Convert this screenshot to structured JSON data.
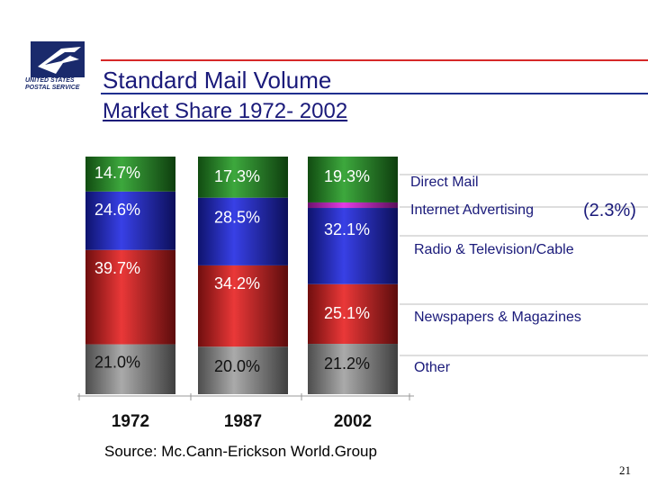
{
  "logo": {
    "line1": "UNITED STATES",
    "line2": "POSTAL SERVICE"
  },
  "title": "Standard Mail Volume",
  "subtitle": "Market Share 1972- 2002",
  "source": "Source: Mc.Cann-Erickson World.Group",
  "page_number": "21",
  "colors": {
    "direct_mail": "#1f8a1f",
    "internet_advertising": "#c61ec6",
    "radio_tv_cable": "#1a22c8",
    "newspapers_magazines": "#cc1a1a",
    "other": "#8c8c8c",
    "title": "#1a1a7a",
    "red_rule": "#d62828",
    "blue_rule": "#1f2f8f"
  },
  "chart_data": {
    "type": "bar",
    "stacked": true,
    "normalized_percent": true,
    "categories": [
      "1972",
      "1987",
      "2002"
    ],
    "series": [
      {
        "name": "Other",
        "values": [
          21.0,
          20.0,
          21.2
        ],
        "labels": [
          "21.0%",
          "20.0%",
          "21.2%"
        ],
        "color": "#8c8c8c"
      },
      {
        "name": "Newspapers & Magazines",
        "values": [
          39.7,
          34.2,
          25.1
        ],
        "labels": [
          "39.7%",
          "34.2%",
          "25.1%"
        ],
        "color": "#cc1a1a"
      },
      {
        "name": "Radio & Television/Cable",
        "values": [
          24.6,
          28.5,
          32.1
        ],
        "labels": [
          "24.6%",
          "28.5%",
          "32.1%"
        ],
        "color": "#1a22c8"
      },
      {
        "name": "Internet Advertising",
        "values": [
          0,
          0,
          2.3
        ],
        "labels": [
          "",
          "",
          ""
        ],
        "color": "#c61ec6"
      },
      {
        "name": "Direct Mail",
        "values": [
          14.7,
          17.3,
          19.3
        ],
        "labels": [
          "14.7%",
          "17.3%",
          "19.3%"
        ],
        "color": "#1f8a1f"
      }
    ],
    "legend": [
      {
        "name": "Direct Mail",
        "extra": ""
      },
      {
        "name": "Internet Advertising",
        "extra": "(2.3%)"
      },
      {
        "name": "Radio & Television/Cable",
        "extra": ""
      },
      {
        "name": "Newspapers & Magazines",
        "extra": ""
      },
      {
        "name": "Other",
        "extra": ""
      }
    ],
    "ylim": [
      0,
      100
    ],
    "grid": false,
    "legend_placement": "right"
  }
}
